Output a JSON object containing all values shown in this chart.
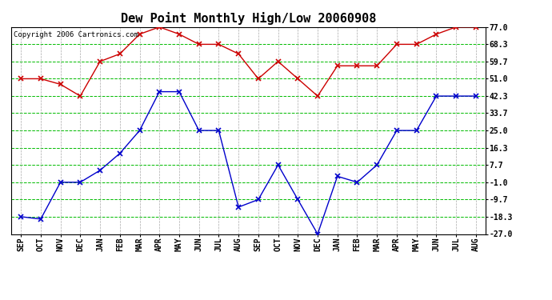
{
  "title": "Dew Point Monthly High/Low 20060908",
  "copyright": "Copyright 2006 Cartronics.com",
  "months": [
    "SEP",
    "OCT",
    "NOV",
    "DEC",
    "JAN",
    "FEB",
    "MAR",
    "APR",
    "MAY",
    "JUN",
    "JUL",
    "AUG",
    "SEP",
    "OCT",
    "NOV",
    "DEC",
    "JAN",
    "FEB",
    "MAR",
    "APR",
    "MAY",
    "JUN",
    "JUL",
    "AUG"
  ],
  "high": [
    51.0,
    51.0,
    48.2,
    42.3,
    59.7,
    63.5,
    73.4,
    77.0,
    73.4,
    68.3,
    68.3,
    63.5,
    51.0,
    59.7,
    51.0,
    42.3,
    57.5,
    57.5,
    57.5,
    68.3,
    68.3,
    73.4,
    77.0,
    77.0
  ],
  "low": [
    -18.3,
    -19.5,
    -1.0,
    -1.0,
    5.0,
    13.5,
    25.0,
    44.5,
    44.5,
    25.0,
    25.0,
    -13.5,
    -9.7,
    7.7,
    -9.7,
    -27.0,
    2.0,
    -1.0,
    7.7,
    25.0,
    25.0,
    42.3,
    42.3,
    42.3
  ],
  "yticks": [
    -27.0,
    -18.3,
    -9.7,
    -1.0,
    7.7,
    16.3,
    25.0,
    33.7,
    42.3,
    51.0,
    59.7,
    68.3,
    77.0
  ],
  "high_color": "#cc0000",
  "low_color": "#0000cc",
  "grid_color": "#00bb00",
  "vgrid_color": "#aaaaaa",
  "bg_color": "#ffffff",
  "title_fontsize": 11,
  "copyright_fontsize": 6.5,
  "tick_fontsize": 7,
  "ylim": [
    -27.0,
    77.0
  ],
  "marker": "x",
  "linewidth": 1.0,
  "markersize": 4
}
